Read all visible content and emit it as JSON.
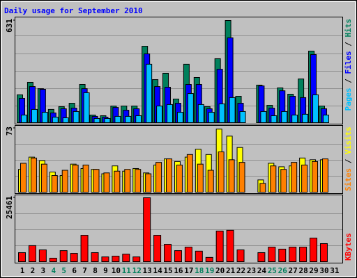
{
  "title": "Daily usage for September 2010",
  "chart_data": [
    {
      "type": "bar",
      "legend_separator": " / ",
      "ylim": [
        0,
        631
      ],
      "yticks": [
        631
      ],
      "series": [
        {
          "name": "Hits",
          "color": "#00805c",
          "values": [
            172,
            249,
            210,
            82,
            99,
            120,
            236,
            47,
            43,
            103,
            103,
            103,
            472,
            266,
            305,
            146,
            361,
            279,
            99,
            395,
            631,
            163,
            0,
            232,
            107,
            215,
            176,
            270,
            442,
            103,
            0
          ]
        },
        {
          "name": "Files",
          "color": "#0000ff",
          "values": [
            150,
            223,
            206,
            60,
            86,
            90,
            210,
            39,
            34,
            94,
            77,
            86,
            425,
            223,
            219,
            120,
            236,
            236,
            86,
            330,
            524,
            120,
            0,
            227,
            90,
            197,
            163,
            155,
            421,
            86,
            0
          ]
        },
        {
          "name": "Pages",
          "color": "#00c0ff",
          "values": [
            47,
            82,
            64,
            34,
            30,
            69,
            185,
            26,
            26,
            39,
            39,
            43,
            361,
            103,
            112,
            64,
            180,
            112,
            64,
            116,
            155,
            69,
            0,
            69,
            43,
            69,
            47,
            52,
            172,
            47,
            0
          ]
        }
      ]
    },
    {
      "type": "bar",
      "legend_separator": " / ",
      "ylim": [
        0,
        73
      ],
      "yticks": [
        73
      ],
      "series": [
        {
          "name": "Visits",
          "color": "#ffff00",
          "values": [
            26,
            40,
            36,
            23,
            19,
            32,
            27,
            26,
            21,
            30,
            24,
            27,
            22,
            31,
            38,
            35,
            40,
            49,
            43,
            72,
            64,
            51,
            0,
            14,
            33,
            29,
            30,
            39,
            37,
            37,
            0
          ]
        },
        {
          "name": "Sites",
          "color": "#ff8000",
          "values": [
            33,
            39,
            32,
            19,
            25,
            31,
            31,
            26,
            22,
            24,
            26,
            26,
            21,
            34,
            38,
            31,
            43,
            32,
            25,
            46,
            37,
            34,
            0,
            10,
            30,
            26,
            34,
            31,
            35,
            38,
            0
          ]
        }
      ]
    },
    {
      "type": "bar",
      "ylim": [
        0,
        25461
      ],
      "yticks": [
        25461
      ],
      "categories": [
        "1",
        "2",
        "3",
        "4",
        "5",
        "6",
        "7",
        "8",
        "9",
        "10",
        "11",
        "12",
        "13",
        "14",
        "15",
        "16",
        "17",
        "18",
        "19",
        "20",
        "21",
        "22",
        "23",
        "24",
        "25",
        "26",
        "27",
        "28",
        "29",
        "30",
        "31"
      ],
      "category_colors": [
        "#000000",
        "#000000",
        "#000000",
        "#00805c",
        "#00805c",
        "#000000",
        "#000000",
        "#000000",
        "#000000",
        "#000000",
        "#00805c",
        "#00805c",
        "#000000",
        "#000000",
        "#000000",
        "#000000",
        "#000000",
        "#00805c",
        "#00805c",
        "#000000",
        "#000000",
        "#000000",
        "#000000",
        "#000000",
        "#00805c",
        "#00805c",
        "#000000",
        "#000000",
        "#000000",
        "#000000",
        "#000000"
      ],
      "series": [
        {
          "name": "KBytes",
          "color": "#ff0000",
          "values": [
            3600,
            6400,
            4700,
            1400,
            4400,
            3300,
            10500,
            3600,
            1900,
            2200,
            3000,
            1900,
            25461,
            10500,
            6900,
            4400,
            5800,
            4200,
            1700,
            12200,
            12500,
            4700,
            0,
            3600,
            5800,
            5000,
            5800,
            5800,
            9400,
            7200,
            0
          ]
        }
      ]
    }
  ]
}
